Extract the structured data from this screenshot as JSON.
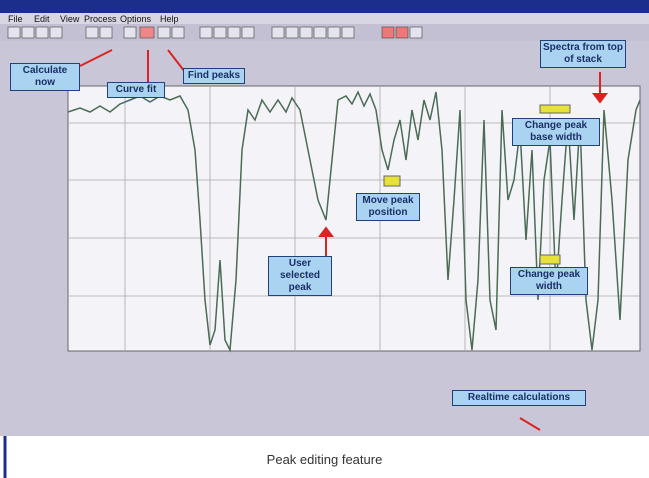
{
  "menu": [
    "File",
    "Edit",
    "View",
    "Process",
    "Options",
    "Help"
  ],
  "callouts": {
    "calculate_now": "Calculate now",
    "curve_fit": "Curve fit",
    "find_peaks": "Find peaks",
    "spectra_from_top": "Spectra from top of stack",
    "change_base_width": "Change peak base width",
    "move_peak": "Move peak position",
    "user_selected": "User selected peak",
    "change_width": "Change peak width",
    "realtime": "Realtime calculations"
  },
  "caption": "Peak editing feature"
}
